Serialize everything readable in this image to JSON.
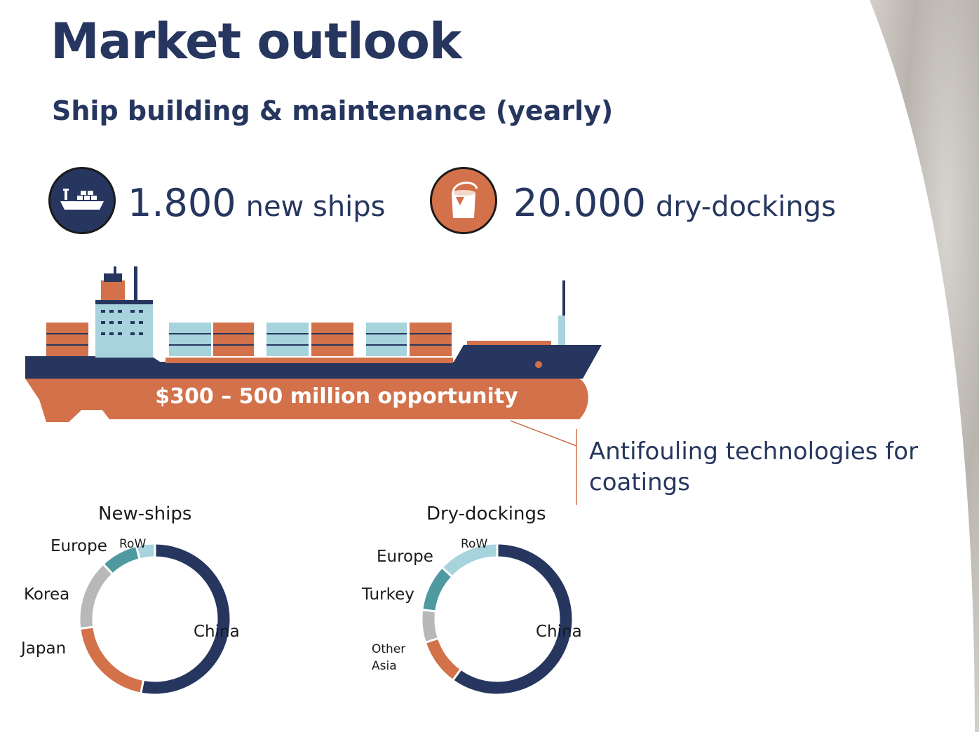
{
  "page": {
    "title": "Market outlook",
    "subtitle": "Ship building & maintenance (yearly)"
  },
  "stats": [
    {
      "icon": "container-ship-icon",
      "value": "1.800",
      "unit": "new ships"
    },
    {
      "icon": "paint-bucket-icon",
      "value": "20.000",
      "unit": "dry-dockings"
    }
  ],
  "ship_banner": {
    "text": "$300 – 500 million opportunity"
  },
  "callout": {
    "text": "Antifouling technologies for coatings"
  },
  "colors": {
    "navy": "#26365f",
    "orange": "#d2714a",
    "grey": "#b8b8b8",
    "teal": "#4e9aa0",
    "light_blue": "#a7d3dc"
  },
  "chart_data": [
    {
      "type": "pie",
      "title": "New-ships",
      "labels": [
        "China",
        "Japan",
        "Korea",
        "Europe",
        "RoW"
      ],
      "values": [
        53,
        20,
        15,
        8,
        4
      ]
    },
    {
      "type": "pie",
      "title": "Dry-dockings",
      "labels": [
        "China",
        "Other Asia",
        "Turkey",
        "Europe",
        "RoW"
      ],
      "values": [
        60,
        10,
        7,
        10,
        13
      ]
    }
  ]
}
